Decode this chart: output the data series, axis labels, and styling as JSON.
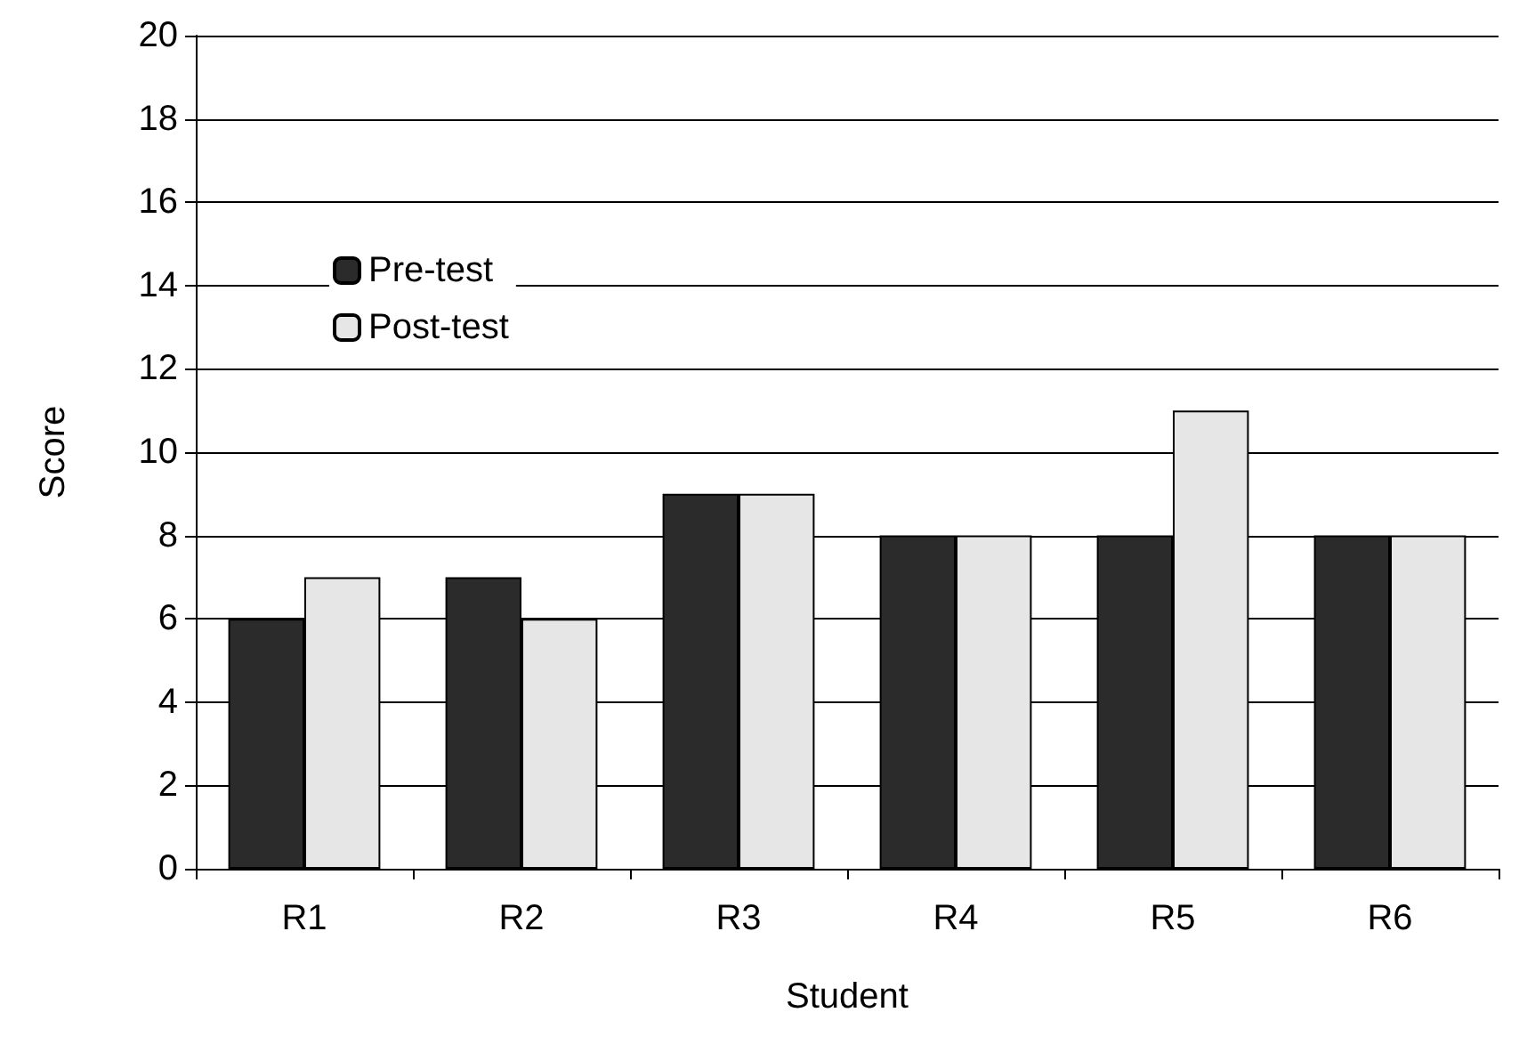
{
  "chart_data": {
    "type": "bar",
    "xlabel": "Student",
    "ylabel": "Score",
    "categories": [
      "R1",
      "R2",
      "R3",
      "R4",
      "R5",
      "R6"
    ],
    "series": [
      {
        "name": "Pre-test",
        "color": "#2b2b2b",
        "values": [
          6,
          7,
          9,
          8,
          8,
          8
        ]
      },
      {
        "name": "Post-test",
        "color": "#e6e6e6",
        "values": [
          7,
          6,
          9,
          8,
          11,
          8
        ]
      }
    ],
    "ylim": [
      0,
      20
    ],
    "yticks": [
      0,
      2,
      4,
      6,
      8,
      10,
      12,
      14,
      16,
      18,
      20
    ],
    "grid": "y",
    "legend": "top left"
  }
}
